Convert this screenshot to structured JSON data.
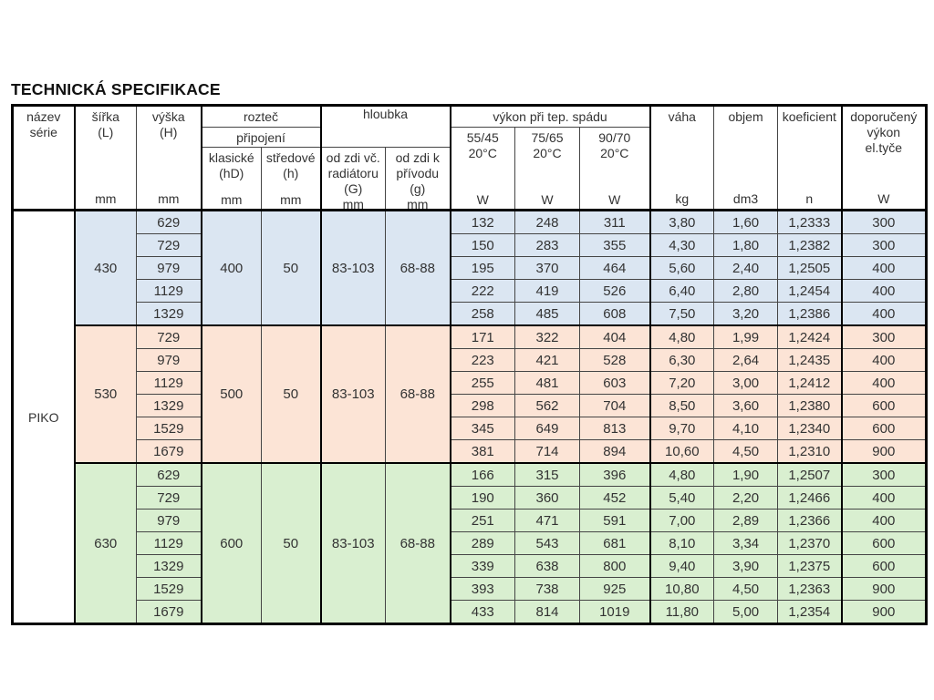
{
  "title": "TECHNICKÁ SPECIFIKACE",
  "series_name": "PIKO",
  "colors": {
    "section_blue": "#dbe6f2",
    "section_pink": "#fce4d6",
    "section_green": "#d9efd0",
    "series_bg": "#ffffff",
    "thick_border": "#000000",
    "thin_border": "#454545"
  },
  "header": {
    "series": {
      "lines": [
        "název",
        "série"
      ]
    },
    "width": {
      "lines": [
        "šířka",
        "(L)"
      ],
      "unit": "mm"
    },
    "height": {
      "lines": [
        "výška",
        "(H)"
      ],
      "unit": "mm"
    },
    "pitch": {
      "title": "rozteč",
      "subtitle": "připojení",
      "classic": {
        "lines": [
          "klasické",
          "(hD)"
        ],
        "unit": "mm"
      },
      "central": {
        "lines": [
          "středové",
          "(h)"
        ],
        "unit": "mm"
      }
    },
    "depth": {
      "title": "hloubka",
      "from_wall_incl": {
        "lines": [
          "od zdi vč.",
          "radiátoru",
          "(G)"
        ],
        "unit": "mm"
      },
      "from_wall_to": {
        "lines": [
          "od zdi k",
          "přívodu",
          "(g)"
        ],
        "unit": "mm"
      }
    },
    "power": {
      "title": "výkon při tep. spádu",
      "t5545": {
        "lines": [
          "55/45",
          "20°C"
        ],
        "unit": "W"
      },
      "t7565": {
        "lines": [
          "75/65",
          "20°C"
        ],
        "unit": "W"
      },
      "t9070": {
        "lines": [
          "90/70",
          "20°C"
        ],
        "unit": "W"
      }
    },
    "weight": {
      "lines": [
        "váha"
      ],
      "unit": "kg"
    },
    "volume": {
      "lines": [
        "objem"
      ],
      "unit": "dm3"
    },
    "coefficient": {
      "lines": [
        "koeficient"
      ],
      "unit": "n"
    },
    "recommended": {
      "lines": [
        "doporučený",
        "výkon",
        "el.tyče"
      ],
      "unit": "W"
    }
  },
  "sections": [
    {
      "width": "430",
      "pitch_classic": "400",
      "pitch_central": "50",
      "depth_G": "83-103",
      "depth_g": "68-88",
      "color": "#dbe6f2",
      "rows": [
        {
          "h": "629",
          "w5545": "132",
          "w7565": "248",
          "w9070": "311",
          "weight": "3,80",
          "volume": "1,60",
          "coef": "1,2333",
          "rec": "300"
        },
        {
          "h": "729",
          "w5545": "150",
          "w7565": "283",
          "w9070": "355",
          "weight": "4,30",
          "volume": "1,80",
          "coef": "1,2382",
          "rec": "300"
        },
        {
          "h": "979",
          "w5545": "195",
          "w7565": "370",
          "w9070": "464",
          "weight": "5,60",
          "volume": "2,40",
          "coef": "1,2505",
          "rec": "400"
        },
        {
          "h": "1129",
          "w5545": "222",
          "w7565": "419",
          "w9070": "526",
          "weight": "6,40",
          "volume": "2,80",
          "coef": "1,2454",
          "rec": "400"
        },
        {
          "h": "1329",
          "w5545": "258",
          "w7565": "485",
          "w9070": "608",
          "weight": "7,50",
          "volume": "3,20",
          "coef": "1,2386",
          "rec": "400"
        }
      ]
    },
    {
      "width": "530",
      "pitch_classic": "500",
      "pitch_central": "50",
      "depth_G": "83-103",
      "depth_g": "68-88",
      "color": "#fce4d6",
      "rows": [
        {
          "h": "729",
          "w5545": "171",
          "w7565": "322",
          "w9070": "404",
          "weight": "4,80",
          "volume": "1,99",
          "coef": "1,2424",
          "rec": "300"
        },
        {
          "h": "979",
          "w5545": "223",
          "w7565": "421",
          "w9070": "528",
          "weight": "6,30",
          "volume": "2,64",
          "coef": "1,2435",
          "rec": "400"
        },
        {
          "h": "1129",
          "w5545": "255",
          "w7565": "481",
          "w9070": "603",
          "weight": "7,20",
          "volume": "3,00",
          "coef": "1,2412",
          "rec": "400"
        },
        {
          "h": "1329",
          "w5545": "298",
          "w7565": "562",
          "w9070": "704",
          "weight": "8,50",
          "volume": "3,60",
          "coef": "1,2380",
          "rec": "600"
        },
        {
          "h": "1529",
          "w5545": "345",
          "w7565": "649",
          "w9070": "813",
          "weight": "9,70",
          "volume": "4,10",
          "coef": "1,2340",
          "rec": "600"
        },
        {
          "h": "1679",
          "w5545": "381",
          "w7565": "714",
          "w9070": "894",
          "weight": "10,60",
          "volume": "4,50",
          "coef": "1,2310",
          "rec": "900"
        }
      ]
    },
    {
      "width": "630",
      "pitch_classic": "600",
      "pitch_central": "50",
      "depth_G": "83-103",
      "depth_g": "68-88",
      "color": "#d9efd0",
      "rows": [
        {
          "h": "629",
          "w5545": "166",
          "w7565": "315",
          "w9070": "396",
          "weight": "4,80",
          "volume": "1,90",
          "coef": "1,2507",
          "rec": "300"
        },
        {
          "h": "729",
          "w5545": "190",
          "w7565": "360",
          "w9070": "452",
          "weight": "5,40",
          "volume": "2,20",
          "coef": "1,2466",
          "rec": "400"
        },
        {
          "h": "979",
          "w5545": "251",
          "w7565": "471",
          "w9070": "591",
          "weight": "7,00",
          "volume": "2,89",
          "coef": "1,2366",
          "rec": "400"
        },
        {
          "h": "1129",
          "w5545": "289",
          "w7565": "543",
          "w9070": "681",
          "weight": "8,10",
          "volume": "3,34",
          "coef": "1,2370",
          "rec": "600"
        },
        {
          "h": "1329",
          "w5545": "339",
          "w7565": "638",
          "w9070": "800",
          "weight": "9,40",
          "volume": "3,90",
          "coef": "1,2375",
          "rec": "600"
        },
        {
          "h": "1529",
          "w5545": "393",
          "w7565": "738",
          "w9070": "925",
          "weight": "10,80",
          "volume": "4,50",
          "coef": "1,2363",
          "rec": "900"
        },
        {
          "h": "1679",
          "w5545": "433",
          "w7565": "814",
          "w9070": "1019",
          "weight": "11,80",
          "volume": "5,00",
          "coef": "1,2354",
          "rec": "900"
        }
      ]
    }
  ]
}
